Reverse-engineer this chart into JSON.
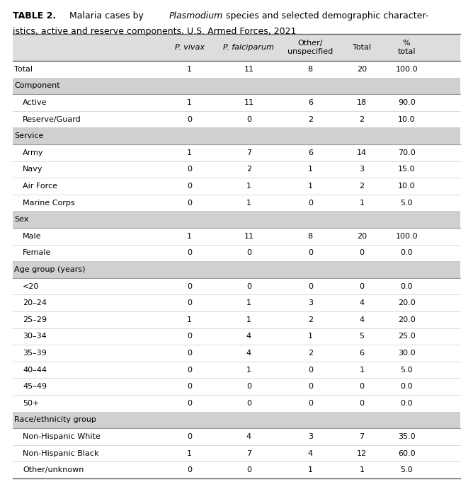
{
  "columns": [
    "P. vivax",
    "P. falciparum",
    "Other/\nunspecified",
    "Total",
    "%\ntotal"
  ],
  "col_styles": [
    "italic",
    "italic",
    "normal",
    "normal",
    "normal"
  ],
  "header_bg": "#dddddd",
  "section_bg": "#d0d0d0",
  "row_bg_white": "#ffffff",
  "border_color": "#888888",
  "sep_color": "#cccccc",
  "rows": [
    {
      "label": "Total",
      "values": [
        "1",
        "11",
        "8",
        "20",
        "100.0"
      ],
      "type": "total",
      "indent": false
    },
    {
      "label": "Component",
      "values": [
        "",
        "",
        "",
        "",
        ""
      ],
      "type": "section",
      "indent": false
    },
    {
      "label": "Active",
      "values": [
        "1",
        "11",
        "6",
        "18",
        "90.0"
      ],
      "type": "data",
      "indent": true
    },
    {
      "label": "Reserve/Guard",
      "values": [
        "0",
        "0",
        "2",
        "2",
        "10.0"
      ],
      "type": "data",
      "indent": true
    },
    {
      "label": "Service",
      "values": [
        "",
        "",
        "",
        "",
        ""
      ],
      "type": "section",
      "indent": false
    },
    {
      "label": "Army",
      "values": [
        "1",
        "7",
        "6",
        "14",
        "70.0"
      ],
      "type": "data",
      "indent": true
    },
    {
      "label": "Navy",
      "values": [
        "0",
        "2",
        "1",
        "3",
        "15.0"
      ],
      "type": "data",
      "indent": true
    },
    {
      "label": "Air Force",
      "values": [
        "0",
        "1",
        "1",
        "2",
        "10.0"
      ],
      "type": "data",
      "indent": true
    },
    {
      "label": "Marine Corps",
      "values": [
        "0",
        "1",
        "0",
        "1",
        "5.0"
      ],
      "type": "data",
      "indent": true
    },
    {
      "label": "Sex",
      "values": [
        "",
        "",
        "",
        "",
        ""
      ],
      "type": "section",
      "indent": false
    },
    {
      "label": "Male",
      "values": [
        "1",
        "11",
        "8",
        "20",
        "100.0"
      ],
      "type": "data",
      "indent": true
    },
    {
      "label": "Female",
      "values": [
        "0",
        "0",
        "0",
        "0",
        "0.0"
      ],
      "type": "data",
      "indent": true
    },
    {
      "label": "Age group (years)",
      "values": [
        "",
        "",
        "",
        "",
        ""
      ],
      "type": "section",
      "indent": false
    },
    {
      "label": "<20",
      "values": [
        "0",
        "0",
        "0",
        "0",
        "0.0"
      ],
      "type": "data",
      "indent": true
    },
    {
      "label": "20–24",
      "values": [
        "0",
        "1",
        "3",
        "4",
        "20.0"
      ],
      "type": "data",
      "indent": true
    },
    {
      "label": "25–29",
      "values": [
        "1",
        "1",
        "2",
        "4",
        "20.0"
      ],
      "type": "data",
      "indent": true
    },
    {
      "label": "30–34",
      "values": [
        "0",
        "4",
        "1",
        "5",
        "25.0"
      ],
      "type": "data",
      "indent": true
    },
    {
      "label": "35–39",
      "values": [
        "0",
        "4",
        "2",
        "6",
        "30.0"
      ],
      "type": "data",
      "indent": true
    },
    {
      "label": "40–44",
      "values": [
        "0",
        "1",
        "0",
        "1",
        "5.0"
      ],
      "type": "data",
      "indent": true
    },
    {
      "label": "45–49",
      "values": [
        "0",
        "0",
        "0",
        "0",
        "0.0"
      ],
      "type": "data",
      "indent": true
    },
    {
      "label": "50+",
      "values": [
        "0",
        "0",
        "0",
        "0",
        "0.0"
      ],
      "type": "data",
      "indent": true
    },
    {
      "label": "Race/ethnicity group",
      "values": [
        "",
        "",
        "",
        "",
        ""
      ],
      "type": "section",
      "indent": false
    },
    {
      "label": "Non-Hispanic White",
      "values": [
        "0",
        "4",
        "3",
        "7",
        "35.0"
      ],
      "type": "data",
      "indent": true
    },
    {
      "label": "Non-Hispanic Black",
      "values": [
        "1",
        "7",
        "4",
        "12",
        "60.0"
      ],
      "type": "data",
      "indent": true
    },
    {
      "label": "Other/unknown",
      "values": [
        "0",
        "0",
        "1",
        "1",
        "5.0"
      ],
      "type": "data",
      "indent": true
    }
  ],
  "font_size": 8.0,
  "title_font_size": 9.0
}
